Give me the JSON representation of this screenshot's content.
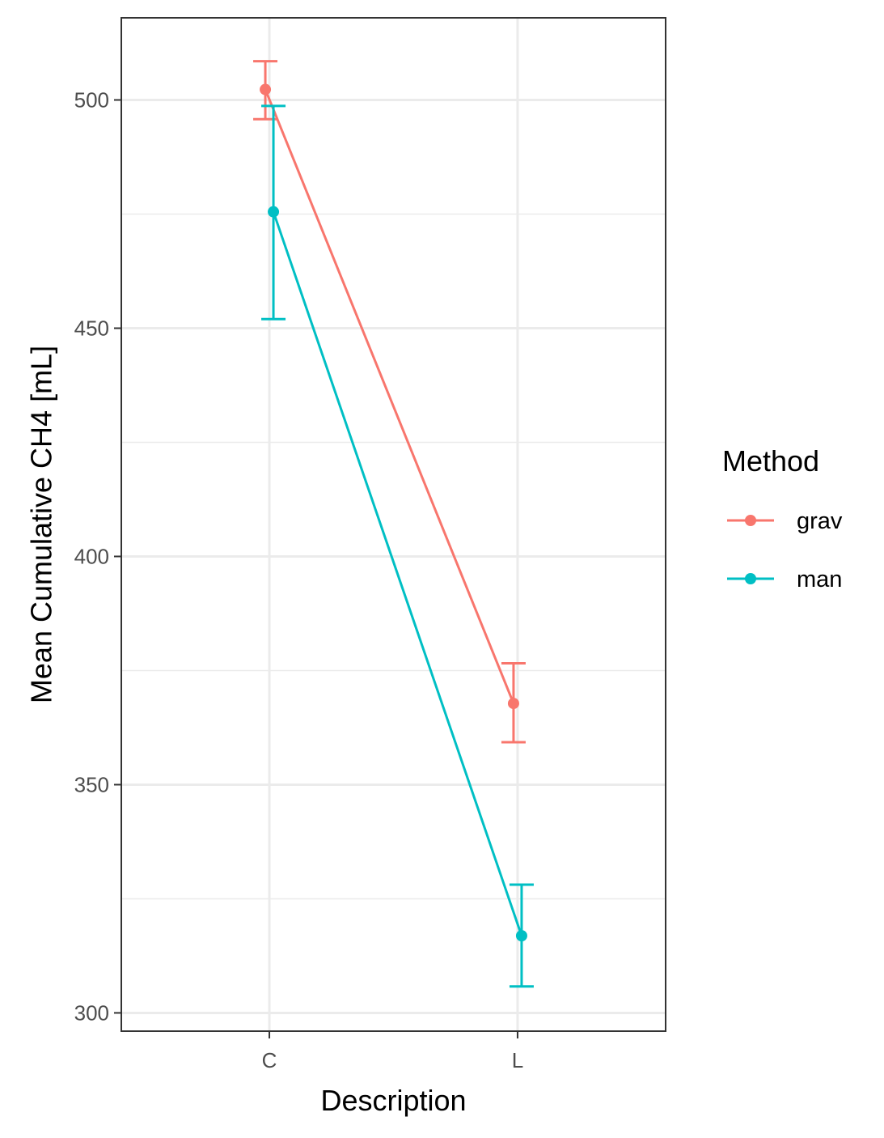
{
  "chart_data": {
    "type": "line",
    "xlabel": "Description",
    "ylabel": "Mean Cumulative CH4 [mL]",
    "categories": [
      "C",
      "L"
    ],
    "ylim": [
      296,
      518
    ],
    "y_ticks": [
      300,
      350,
      400,
      450,
      500
    ],
    "y_tick_labels": [
      "300",
      "350",
      "400",
      "450",
      "500"
    ],
    "grid": true,
    "legend": {
      "title": "Method",
      "position": "right"
    },
    "series": [
      {
        "name": "grav",
        "color": "#F8766D",
        "values": [
          502.3,
          367.8
        ],
        "error_low": [
          495.8,
          359.3
        ],
        "error_high": [
          508.5,
          376.6
        ]
      },
      {
        "name": "man",
        "color": "#00BFC4",
        "values": [
          475.5,
          316.9
        ],
        "error_low": [
          452.0,
          305.8
        ],
        "error_high": [
          498.7,
          328.1
        ]
      }
    ]
  }
}
